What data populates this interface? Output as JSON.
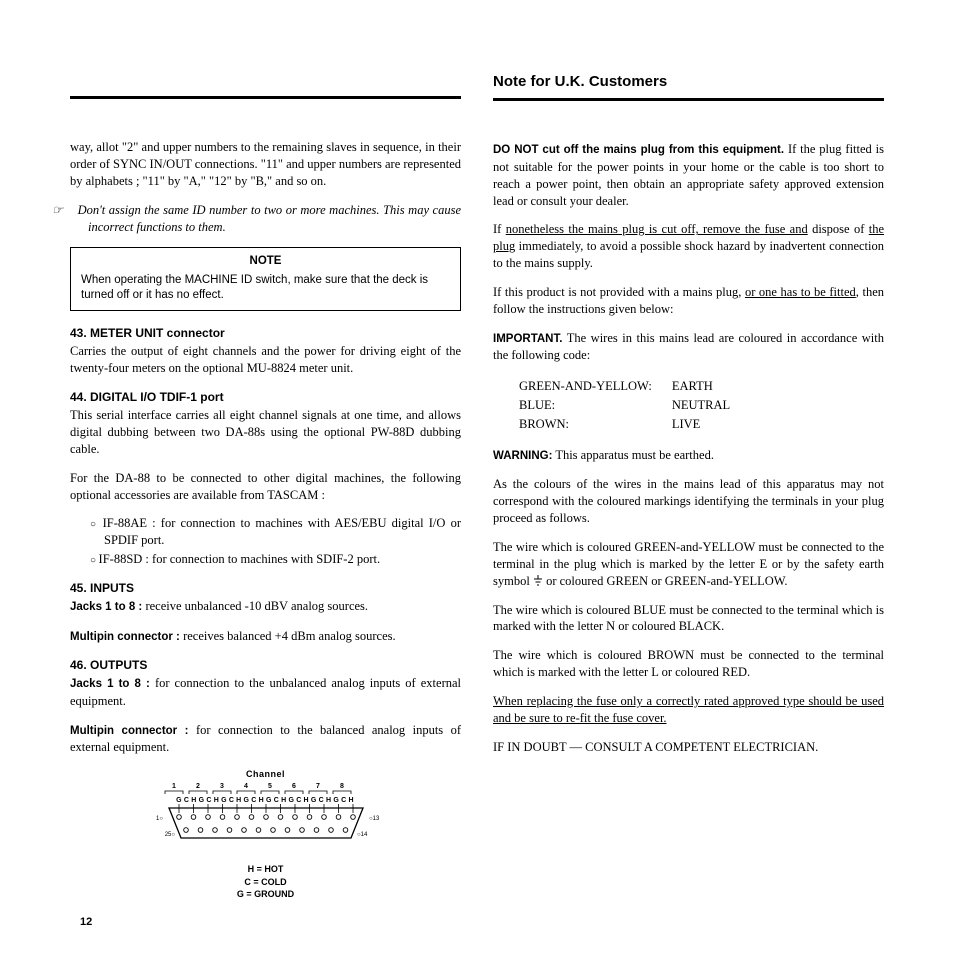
{
  "left": {
    "para1": "way, allot \"2\" and upper numbers to the remaining slaves in sequence, in their order of SYNC IN/OUT connections. \"11\" and upper numbers are represented by alphabets ; \"11\" by \"A,\" \"12\" by \"B,\" and so on.",
    "caution": "Don't assign the same ID number to two or more machines. This may cause incorrect functions to them.",
    "note_title": "NOTE",
    "note_body": "When operating the MACHINE ID switch, make sure that the deck is turned off or it has no effect.",
    "s43_head": "43. METER UNIT connector",
    "s43_body": "Carries the output of eight channels and the power for driving eight of the twenty-four meters on the optional MU-8824 meter unit.",
    "s44_head": "44. DIGITAL I/O TDIF-1 port",
    "s44_body1": "This serial interface carries all eight channel signals at one time, and allows digital dubbing between two DA-88s using the optional PW-88D dubbing cable.",
    "s44_body2": "For the DA-88 to be connected to other digital machines, the following optional accessories are available from TASCAM :",
    "s44_li1": "IF-88AE : for connection to machines with AES/EBU digital I/O or SPDIF port.",
    "s44_li2": "IF-88SD : for connection to machines with SDIF-2 port.",
    "s45_head": "45. INPUTS",
    "s45_b1_label": "Jacks 1 to 8 : ",
    "s45_b1_body": "receive unbalanced -10 dBV analog sources.",
    "s45_b2_label": "Multipin connector : ",
    "s45_b2_body": "receives balanced +4 dBm analog sources.",
    "s46_head": "46. OUTPUTS",
    "s46_b1_label": "Jacks 1 to 8 : ",
    "s46_b1_body": "for connection to the unbalanced analog inputs of external equipment.",
    "s46_b2_label": "Multipin connector : ",
    "s46_b2_body": "for connection to the balanced analog inputs of external equipment.",
    "diagram": {
      "channel_label": "Channel",
      "channels": [
        "1",
        "2",
        "3",
        "4",
        "5",
        "6",
        "7",
        "8"
      ],
      "pin_labels_row": "G C H G C H G C H G C H G C H G C H G C H G C H",
      "pin_left_top": "1○",
      "pin_right_top": "○13",
      "pin_left_bot": "25○",
      "pin_right_bot": "○14",
      "legend_h": "H = HOT",
      "legend_c": "C = COLD",
      "legend_g": "G = GROUND"
    }
  },
  "right": {
    "title": "Note for U.K. Customers",
    "p1_bold": "DO NOT cut off the mains plug from this equipment.",
    "p1_rest": " If the plug fitted is not suitable for the power points in your home or the cable is too short to reach a power point, then obtain an appropriate safety approved extension lead or consult your dealer.",
    "p2_a": "If ",
    "p2_u1": "nonetheless the mains plug is cut off, remove the fuse and",
    "p2_b": " dispose of ",
    "p2_u2": "the plug",
    "p2_c": " immediately, to avoid a possible shock hazard by inadvertent connection to the mains supply.",
    "p3_a": "If this product is not provided with a mains plug, ",
    "p3_u1": "or one has to be fitted",
    "p3_b": ", then follow the instructions given below:",
    "p4_label": "IMPORTANT.",
    "p4_body": " The wires in this mains lead are coloured in accordance with the following code:",
    "wires": [
      [
        "GREEN-AND-YELLOW:",
        "EARTH"
      ],
      [
        "BLUE:",
        "NEUTRAL"
      ],
      [
        "BROWN:",
        "LIVE"
      ]
    ],
    "p5_label": "WARNING:",
    "p5_body": " This apparatus must be earthed.",
    "p6": "As the colours of the wires in the mains lead of this apparatus may not correspond with the coloured markings identifying the terminals in your plug proceed as follows.",
    "p7_a": "The wire which is coloured GREEN-and-YELLOW must be connected to the terminal in the plug which is marked by the letter E or by the safety earth symbol ",
    "p7_b": " or coloured GREEN or GREEN-and-YELLOW.",
    "p8": "The wire which is coloured BLUE must be connected to the terminal which is marked with the letter N or coloured BLACK.",
    "p9": "The wire which is coloured BROWN must be connected to the terminal which is marked with the letter L or coloured RED.",
    "p10_u": "When replacing the fuse only a correctly rated approved type should be used and be sure to re-fit the fuse cover.",
    "p11": "IF IN DOUBT — CONSULT A COMPETENT ELECTRICIAN."
  },
  "page_number": "12",
  "colors": {
    "text": "#000000",
    "background": "#ffffff",
    "rule": "#000000"
  },
  "typography": {
    "body_family": "Times New Roman",
    "body_size_pt": 9,
    "sans_family": "Helvetica",
    "title_size_pt": 12
  }
}
